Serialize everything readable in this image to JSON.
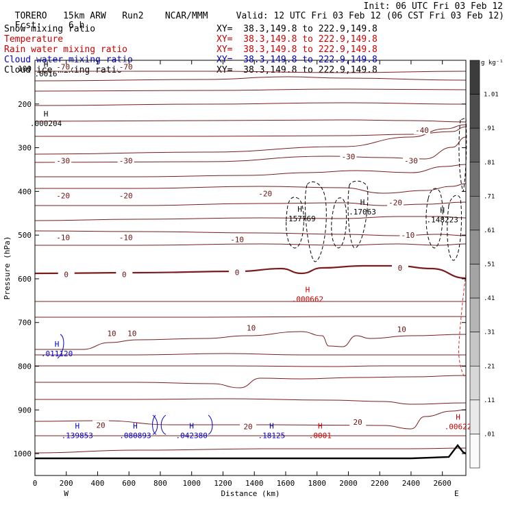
{
  "header": {
    "model": "TORERO",
    "resolution": "15km ARW",
    "run": "Run2",
    "source": "NCAR/MMM",
    "init": "Init: 06 UTC Fri 03 Feb 12",
    "fcst_label": "Fcst:",
    "fcst_value": "6 h",
    "valid": "Valid: 12 UTC Fri 03 Feb 12 (06 CST Fri 03 Feb 12)"
  },
  "fields": [
    {
      "label": "Snow mixing ratio",
      "xy": "XY=  38.3,149.8 to 222.9,149.8",
      "color": "#000000"
    },
    {
      "label": "Temperature",
      "xy": "XY=  38.3,149.8 to 222.9,149.8",
      "color": "#cc0000"
    },
    {
      "label": "Rain water mixing ratio",
      "xy": "XY=  38.3,149.8 to 222.9,149.8",
      "color": "#cc0000"
    },
    {
      "label": "Cloud water mixing ratio",
      "xy": "XY=  38.3,149.8 to 222.9,149.8",
      "color": "#0000cc"
    },
    {
      "label": "Cloud ice mixing ratio",
      "xy": "XY=  38.3,149.8 to 222.9,149.8",
      "color": "#000000"
    }
  ],
  "chart_data": {
    "type": "contour",
    "xlabel": "Distance (km)",
    "ylabel": "Pressure (hPa)",
    "xlim": [
      0,
      2750
    ],
    "ylim": [
      1050,
      100
    ],
    "x_ticks": [
      0,
      200,
      400,
      600,
      800,
      1000,
      1200,
      1400,
      1600,
      1800,
      2000,
      2200,
      2400,
      2600
    ],
    "y_ticks": [
      200,
      300,
      400,
      500,
      600,
      700,
      800,
      900,
      1000
    ],
    "y_top_label": "100",
    "west_label": "W",
    "east_label": "E",
    "colorbar": {
      "unit": "g kg⁻¹",
      "labels": [
        "1.01",
        ".91",
        ".81",
        ".71",
        ".61",
        ".51",
        ".41",
        ".31",
        ".21",
        ".11",
        ".01"
      ]
    },
    "temperature_contours": [
      {
        "value": -70,
        "labels": [
          {
            "x": 180,
            "p": 115,
            "text": "-70"
          },
          {
            "x": 580,
            "p": 115,
            "text": "-70"
          }
        ]
      },
      {
        "value": -40,
        "labels": [
          {
            "x": 2470,
            "p": 260,
            "text": "-40"
          }
        ]
      },
      {
        "value": -30,
        "labels": [
          {
            "x": 180,
            "p": 330,
            "text": "-30"
          },
          {
            "x": 580,
            "p": 330,
            "text": "-30"
          },
          {
            "x": 2000,
            "p": 320,
            "text": "-30"
          },
          {
            "x": 2400,
            "p": 330,
            "text": "-30"
          }
        ]
      },
      {
        "value": -20,
        "labels": [
          {
            "x": 180,
            "p": 410,
            "text": "-20"
          },
          {
            "x": 580,
            "p": 410,
            "text": "-20"
          },
          {
            "x": 1470,
            "p": 405,
            "text": "-20"
          },
          {
            "x": 2300,
            "p": 425,
            "text": "-20"
          }
        ]
      },
      {
        "value": -10,
        "labels": [
          {
            "x": 180,
            "p": 505,
            "text": "-10"
          },
          {
            "x": 580,
            "p": 505,
            "text": "-10"
          },
          {
            "x": 1290,
            "p": 510,
            "text": "-10"
          },
          {
            "x": 2380,
            "p": 500,
            "text": "-10"
          }
        ]
      },
      {
        "value": 0,
        "labels": [
          {
            "x": 200,
            "p": 590,
            "text": "0"
          },
          {
            "x": 570,
            "p": 590,
            "text": "0"
          },
          {
            "x": 1290,
            "p": 585,
            "text": "0"
          },
          {
            "x": 2330,
            "p": 575,
            "text": "0"
          }
        ]
      },
      {
        "value": 10,
        "labels": [
          {
            "x": 490,
            "p": 725,
            "text": "10"
          },
          {
            "x": 620,
            "p": 725,
            "text": "10"
          },
          {
            "x": 1380,
            "p": 712,
            "text": "10"
          },
          {
            "x": 2340,
            "p": 715,
            "text": "10"
          }
        ]
      },
      {
        "value": 20,
        "labels": [
          {
            "x": 420,
            "p": 935,
            "text": "20"
          },
          {
            "x": 1360,
            "p": 938,
            "text": "20"
          },
          {
            "x": 2060,
            "p": 928,
            "text": "20"
          }
        ]
      }
    ],
    "maxima": [
      {
        "field": "snow",
        "x": 70,
        "p": 124,
        "value": ".0016",
        "color": "#000000"
      },
      {
        "field": "snow",
        "x": 70,
        "p": 238,
        "value": ".000204",
        "color": "#000000"
      },
      {
        "field": "ice",
        "x": 1690,
        "p": 456,
        "value": ".157769",
        "color": "#000000"
      },
      {
        "field": "ice",
        "x": 2090,
        "p": 440,
        "value": ".17063",
        "color": "#000000"
      },
      {
        "field": "ice",
        "x": 2600,
        "p": 458,
        "value": ".148223",
        "color": "#000000"
      },
      {
        "field": "rain",
        "x": 1740,
        "p": 640,
        "value": ".000662",
        "color": "#cc0000"
      },
      {
        "field": "rain",
        "x": 2700,
        "p": 932,
        "value": ".00622",
        "color": "#cc0000"
      },
      {
        "field": "rain",
        "x": 1820,
        "p": 952,
        "value": ".0001",
        "color": "#cc0000"
      },
      {
        "field": "cloud",
        "x": 140,
        "p": 765,
        "value": ".011120",
        "color": "#0000cc"
      },
      {
        "field": "cloud",
        "x": 270,
        "p": 952,
        "value": ".139853",
        "color": "#0000cc"
      },
      {
        "field": "cloud",
        "x": 640,
        "p": 952,
        "value": ".080893",
        "color": "#0000cc"
      },
      {
        "field": "cloud",
        "x": 1000,
        "p": 952,
        "value": ".042380",
        "color": "#0000cc"
      },
      {
        "field": "cloud",
        "x": 1510,
        "p": 952,
        "value": ".18125",
        "color": "#0000cc"
      }
    ],
    "maxima_marker": "H"
  }
}
